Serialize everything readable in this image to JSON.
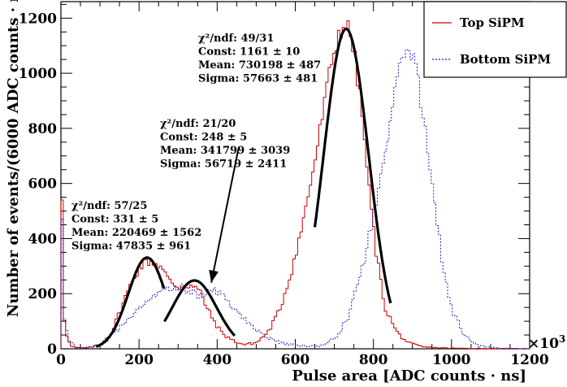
{
  "chart_data": {
    "type": "line",
    "title": "",
    "xlabel": "Pulse area [ADC counts · ns]",
    "ylabel": "Number of events/(6000 ADC counts · ns)",
    "x_multiplier": "×10",
    "x_multiplier_exp": "3",
    "xlim": [
      0,
      1200
    ],
    "ylim": [
      0,
      1260
    ],
    "x_ticks": [
      0,
      200,
      400,
      600,
      800,
      1000,
      1200
    ],
    "y_ticks": [
      0,
      200,
      400,
      600,
      800,
      1000,
      1200
    ],
    "bin_width": 6,
    "series": [
      {
        "name": "Top SiPM",
        "color": "#cc0000",
        "style": "solid",
        "points": [
          [
            0,
            0
          ],
          [
            3,
            540
          ],
          [
            6,
            150
          ],
          [
            12,
            70
          ],
          [
            18,
            35
          ],
          [
            24,
            10
          ],
          [
            40,
            3
          ],
          [
            70,
            3
          ],
          [
            100,
            15
          ],
          [
            130,
            60
          ],
          [
            160,
            170
          ],
          [
            190,
            270
          ],
          [
            210,
            310
          ],
          [
            230,
            320
          ],
          [
            255,
            300
          ],
          [
            275,
            250
          ],
          [
            300,
            225
          ],
          [
            330,
            232
          ],
          [
            355,
            210
          ],
          [
            380,
            130
          ],
          [
            410,
            60
          ],
          [
            440,
            30
          ],
          [
            470,
            15
          ],
          [
            500,
            22
          ],
          [
            530,
            60
          ],
          [
            560,
            140
          ],
          [
            590,
            280
          ],
          [
            620,
            460
          ],
          [
            650,
            680
          ],
          [
            670,
            850
          ],
          [
            690,
            1020
          ],
          [
            710,
            1140
          ],
          [
            725,
            1180
          ],
          [
            740,
            1150
          ],
          [
            755,
            1030
          ],
          [
            770,
            860
          ],
          [
            790,
            560
          ],
          [
            810,
            320
          ],
          [
            830,
            150
          ],
          [
            860,
            60
          ],
          [
            890,
            20
          ],
          [
            930,
            6
          ],
          [
            1000,
            2
          ],
          [
            1200,
            0
          ]
        ]
      },
      {
        "name": "Bottom SiPM",
        "color": "#1a1acc",
        "style": "dotted",
        "points": [
          [
            0,
            0
          ],
          [
            3,
            470
          ],
          [
            6,
            160
          ],
          [
            12,
            80
          ],
          [
            20,
            30
          ],
          [
            40,
            5
          ],
          [
            80,
            5
          ],
          [
            110,
            20
          ],
          [
            140,
            60
          ],
          [
            170,
            110
          ],
          [
            200,
            150
          ],
          [
            230,
            190
          ],
          [
            260,
            220
          ],
          [
            290,
            230
          ],
          [
            310,
            220
          ],
          [
            340,
            200
          ],
          [
            370,
            195
          ],
          [
            390,
            215
          ],
          [
            410,
            200
          ],
          [
            430,
            170
          ],
          [
            460,
            120
          ],
          [
            490,
            80
          ],
          [
            530,
            40
          ],
          [
            570,
            20
          ],
          [
            620,
            10
          ],
          [
            670,
            12
          ],
          [
            710,
            50
          ],
          [
            740,
            130
          ],
          [
            770,
            280
          ],
          [
            800,
            480
          ],
          [
            830,
            690
          ],
          [
            850,
            880
          ],
          [
            870,
            1050
          ],
          [
            885,
            1100
          ],
          [
            900,
            1080
          ],
          [
            915,
            960
          ],
          [
            935,
            780
          ],
          [
            955,
            550
          ],
          [
            975,
            330
          ],
          [
            1000,
            150
          ],
          [
            1030,
            50
          ],
          [
            1070,
            10
          ],
          [
            1120,
            2
          ],
          [
            1200,
            0
          ]
        ]
      }
    ],
    "fits": [
      {
        "mean": 220.469,
        "sigma": 47.835,
        "const": 331,
        "range": [
          90,
          265
        ]
      },
      {
        "mean": 341.799,
        "sigma": 56.719,
        "const": 248,
        "range": [
          265,
          445
        ]
      },
      {
        "mean": 730.198,
        "sigma": 57.663,
        "const": 1161,
        "range": [
          650,
          845
        ]
      }
    ],
    "annotations": [
      {
        "lines": [
          "χ²/ndf:  57/25",
          "Const:  331  ± 5",
          "Mean:  220469  ± 1562",
          "Sigma:  47835  ± 961"
        ]
      },
      {
        "lines": [
          "χ²/ndf:  21/20",
          "Const:  248  ± 5",
          "Mean:  341799  ± 3039",
          "Sigma:  56719  ± 2411"
        ]
      },
      {
        "lines": [
          "χ²/ndf:  49/31",
          "Const:  1161  ± 10",
          "Mean:  730198  ± 487",
          "Sigma:  57663  ± 481"
        ]
      }
    ],
    "arrow": {
      "from": [
        455,
        730
      ],
      "to": [
        385,
        240
      ]
    },
    "legend": {
      "position": "top-right",
      "entries": [
        "Top SiPM",
        "Bottom SiPM"
      ]
    }
  }
}
